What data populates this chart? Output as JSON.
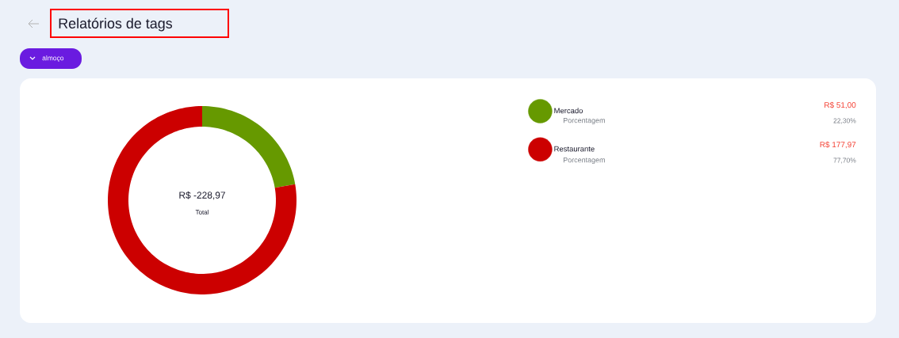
{
  "chart_data": {
    "type": "donut",
    "title": "Relatórios de tags",
    "subtitle": "almoço",
    "categories": [
      "Mercado",
      "Restaurante"
    ],
    "values": [
      51.0,
      177.97
    ],
    "colors": [
      "#669900",
      "#cc0000"
    ],
    "value_labels": [
      "R$ 51,00",
      "R$ 177,97"
    ],
    "legend": "right",
    "annotations": [
      "R$ -228,97",
      "Total",
      "Porcentagem",
      "22,30%",
      "Porcentagem",
      "77,70%"
    ]
  }
}
